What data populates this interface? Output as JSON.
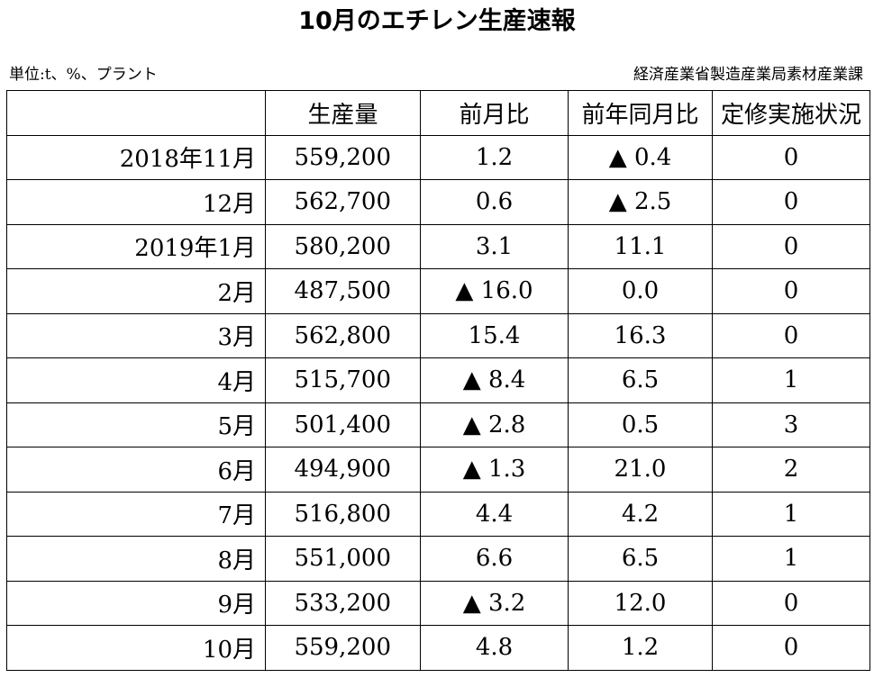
{
  "title": "10月のエチレン生産速報",
  "unit_note": "単位:t、%、プラント",
  "source_note": "経済産業省製造産業局素材産業課",
  "table": {
    "headers": [
      "",
      "生産量",
      "前月比",
      "前年同月比",
      "定修実施状況"
    ],
    "rows": [
      {
        "period": "2018年11月",
        "production": "559,200",
        "mom": "1.2",
        "yoy": "▲ 0.4",
        "maintenance": "0"
      },
      {
        "period": "12月",
        "production": "562,700",
        "mom": "0.6",
        "yoy": "▲ 2.5",
        "maintenance": "0"
      },
      {
        "period": "2019年1月",
        "production": "580,200",
        "mom": "3.1",
        "yoy": "11.1",
        "maintenance": "0"
      },
      {
        "period": "2月",
        "production": "487,500",
        "mom": "▲ 16.0",
        "yoy": "0.0",
        "maintenance": "0"
      },
      {
        "period": "3月",
        "production": "562,800",
        "mom": "15.4",
        "yoy": "16.3",
        "maintenance": "0"
      },
      {
        "period": "4月",
        "production": "515,700",
        "mom": "▲ 8.4",
        "yoy": "6.5",
        "maintenance": "1"
      },
      {
        "period": "5月",
        "production": "501,400",
        "mom": "▲ 2.8",
        "yoy": "0.5",
        "maintenance": "3"
      },
      {
        "period": "6月",
        "production": "494,900",
        "mom": "▲ 1.3",
        "yoy": "21.0",
        "maintenance": "2"
      },
      {
        "period": "7月",
        "production": "516,800",
        "mom": "4.4",
        "yoy": "4.2",
        "maintenance": "1"
      },
      {
        "period": "8月",
        "production": "551,000",
        "mom": "6.6",
        "yoy": "6.5",
        "maintenance": "1"
      },
      {
        "period": "9月",
        "production": "533,200",
        "mom": "▲ 3.2",
        "yoy": "12.0",
        "maintenance": "0"
      },
      {
        "period": "10月",
        "production": "559,200",
        "mom": "4.8",
        "yoy": "1.2",
        "maintenance": "0"
      }
    ]
  }
}
